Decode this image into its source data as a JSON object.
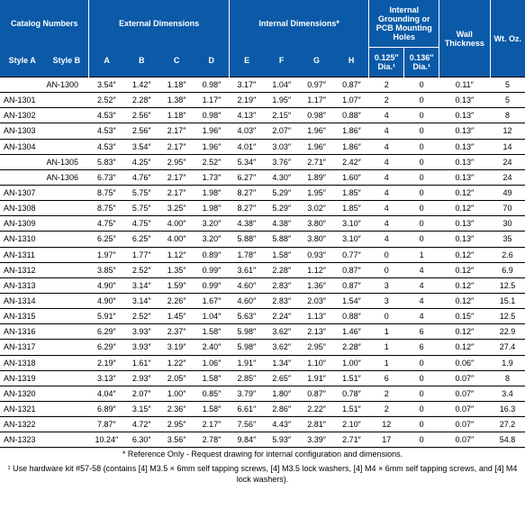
{
  "header": {
    "catalog": "Catalog Numbers",
    "ext": "External Dimensions",
    "int": "Internal Dimensions*",
    "holes": "Internal Grounding or PCB Mounting Holes",
    "styleA": "Style A",
    "styleB": "Style B",
    "A": "A",
    "B": "B",
    "C": "C",
    "D": "D",
    "E": "E",
    "F": "F",
    "G": "G",
    "H": "H",
    "hole1": "0.125″ Dia.¹",
    "hole2": "0.136″ Dia.¹",
    "wall": "Wall Thickness",
    "wt": "Wt. Oz."
  },
  "colors": {
    "header_bg": "#0a5aa8",
    "header_fg": "#ffffff"
  },
  "rows": [
    {
      "styleA": "",
      "styleB": "AN-1300",
      "A": "3.54″",
      "B": "1.42″",
      "C": "1.18″",
      "D": "0.98″",
      "E": "3.17″",
      "F": "1.04″",
      "G": "0.97″",
      "H": "0.87″",
      "h1": "2",
      "h2": "0",
      "wall": "0.11″",
      "wt": "5"
    },
    {
      "styleA": "AN-1301",
      "styleB": "",
      "A": "2.52″",
      "B": "2.28″",
      "C": "1.38″",
      "D": "1.17″",
      "E": "2.19″",
      "F": "1.95″",
      "G": "1.17″",
      "H": "1.07″",
      "h1": "2",
      "h2": "0",
      "wall": "0.13″",
      "wt": "5"
    },
    {
      "styleA": "AN-1302",
      "styleB": "",
      "A": "4.53″",
      "B": "2.56″",
      "C": "1.18″",
      "D": "0.98″",
      "E": "4.13″",
      "F": "2.15″",
      "G": "0.98″",
      "H": "0.88″",
      "h1": "4",
      "h2": "0",
      "wall": "0.13″",
      "wt": "8"
    },
    {
      "styleA": "AN-1303",
      "styleB": "",
      "A": "4.53″",
      "B": "2.56″",
      "C": "2.17″",
      "D": "1.96″",
      "E": "4.03″",
      "F": "2.07″",
      "G": "1.96″",
      "H": "1.86″",
      "h1": "4",
      "h2": "0",
      "wall": "0.13″",
      "wt": "12"
    },
    {
      "styleA": "AN-1304",
      "styleB": "",
      "A": "4.53″",
      "B": "3.54″",
      "C": "2.17″",
      "D": "1.96″",
      "E": "4.01″",
      "F": "3.03″",
      "G": "1.96″",
      "H": "1.86″",
      "h1": "4",
      "h2": "0",
      "wall": "0.13″",
      "wt": "14"
    },
    {
      "styleA": "",
      "styleB": "AN-1305",
      "A": "5.83″",
      "B": "4.25″",
      "C": "2.95″",
      "D": "2.52″",
      "E": "5.34″",
      "F": "3.76″",
      "G": "2.71″",
      "H": "2.42″",
      "h1": "4",
      "h2": "0",
      "wall": "0.13″",
      "wt": "24"
    },
    {
      "styleA": "",
      "styleB": "AN-1306",
      "A": "6.73″",
      "B": "4.76″",
      "C": "2.17″",
      "D": "1.73″",
      "E": "6.27″",
      "F": "4.30″",
      "G": "1.89″",
      "H": "1.60″",
      "h1": "4",
      "h2": "0",
      "wall": "0.13″",
      "wt": "24"
    },
    {
      "styleA": "AN-1307",
      "styleB": "",
      "A": "8.75″",
      "B": "5.75″",
      "C": "2.17″",
      "D": "1.98″",
      "E": "8.27″",
      "F": "5.29″",
      "G": "1.95″",
      "H": "1.85″",
      "h1": "4",
      "h2": "0",
      "wall": "0.12″",
      "wt": "49"
    },
    {
      "styleA": "AN-1308",
      "styleB": "",
      "A": "8.75″",
      "B": "5.75″",
      "C": "3.25″",
      "D": "1.98″",
      "E": "8.27″",
      "F": "5.29″",
      "G": "3.02″",
      "H": "1.85″",
      "h1": "4",
      "h2": "0",
      "wall": "0.12″",
      "wt": "70"
    },
    {
      "styleA": "AN-1309",
      "styleB": "",
      "A": "4.75″",
      "B": "4.75″",
      "C": "4.00″",
      "D": "3.20″",
      "E": "4.38″",
      "F": "4.38″",
      "G": "3.80″",
      "H": "3.10″",
      "h1": "4",
      "h2": "0",
      "wall": "0.13″",
      "wt": "30"
    },
    {
      "styleA": "AN-1310",
      "styleB": "",
      "A": "6.25″",
      "B": "6.25″",
      "C": "4.00″",
      "D": "3.20″",
      "E": "5.88″",
      "F": "5.88″",
      "G": "3.80″",
      "H": "3.10″",
      "h1": "4",
      "h2": "0",
      "wall": "0.13″",
      "wt": "35"
    },
    {
      "styleA": "AN-1311",
      "styleB": "",
      "A": "1.97″",
      "B": "1.77″",
      "C": "1.12″",
      "D": "0.89″",
      "E": "1.78″",
      "F": "1.58″",
      "G": "0.93″",
      "H": "0.77″",
      "h1": "0",
      "h2": "1",
      "wall": "0.12″",
      "wt": "2.6"
    },
    {
      "styleA": "AN-1312",
      "styleB": "",
      "A": "3.85″",
      "B": "2.52″",
      "C": "1.35″",
      "D": "0.99″",
      "E": "3.61″",
      "F": "2.28″",
      "G": "1.12″",
      "H": "0.87″",
      "h1": "0",
      "h2": "4",
      "wall": "0.12″",
      "wt": "6.9"
    },
    {
      "styleA": "AN-1313",
      "styleB": "",
      "A": "4.90″",
      "B": "3.14″",
      "C": "1.59″",
      "D": "0.99″",
      "E": "4.60″",
      "F": "2.83″",
      "G": "1.36″",
      "H": "0.87″",
      "h1": "3",
      "h2": "4",
      "wall": "0.12″",
      "wt": "12.5"
    },
    {
      "styleA": "AN-1314",
      "styleB": "",
      "A": "4.90″",
      "B": "3.14″",
      "C": "2.26″",
      "D": "1.67″",
      "E": "4.60″",
      "F": "2.83″",
      "G": "2.03″",
      "H": "1.54″",
      "h1": "3",
      "h2": "4",
      "wall": "0.12″",
      "wt": "15.1"
    },
    {
      "styleA": "AN-1315",
      "styleB": "",
      "A": "5.91″",
      "B": "2.52″",
      "C": "1.45″",
      "D": "1.04″",
      "E": "5.63″",
      "F": "2.24″",
      "G": "1.13″",
      "H": "0.88″",
      "h1": "0",
      "h2": "4",
      "wall": "0.15″",
      "wt": "12.5"
    },
    {
      "styleA": "AN-1316",
      "styleB": "",
      "A": "6.29″",
      "B": "3.93″",
      "C": "2.37″",
      "D": "1.58″",
      "E": "5.98″",
      "F": "3.62″",
      "G": "2.13″",
      "H": "1.46″",
      "h1": "1",
      "h2": "6",
      "wall": "0.12″",
      "wt": "22.9"
    },
    {
      "styleA": "AN-1317",
      "styleB": "",
      "A": "6.29″",
      "B": "3.93″",
      "C": "3.19″",
      "D": "2.40″",
      "E": "5.98″",
      "F": "3.62″",
      "G": "2.95″",
      "H": "2.28″",
      "h1": "1",
      "h2": "6",
      "wall": "0.12″",
      "wt": "27.4"
    },
    {
      "styleA": "AN-1318",
      "styleB": "",
      "A": "2.19″",
      "B": "1.61″",
      "C": "1.22″",
      "D": "1.06″",
      "E": "1.91″",
      "F": "1.34″",
      "G": "1.10″",
      "H": "1.00″",
      "h1": "1",
      "h2": "0",
      "wall": "0.06″",
      "wt": "1.9"
    },
    {
      "styleA": "AN-1319",
      "styleB": "",
      "A": "3.13″",
      "B": "2.93″",
      "C": "2.05″",
      "D": "1.58″",
      "E": "2.85″",
      "F": "2.65″",
      "G": "1.91″",
      "H": "1.51″",
      "h1": "6",
      "h2": "0",
      "wall": "0.07″",
      "wt": "8"
    },
    {
      "styleA": "AN-1320",
      "styleB": "",
      "A": "4.04″",
      "B": "2.07″",
      "C": "1.00″",
      "D": "0.85″",
      "E": "3.79″",
      "F": "1.80″",
      "G": "0.87″",
      "H": "0.78″",
      "h1": "2",
      "h2": "0",
      "wall": "0.07″",
      "wt": "3.4"
    },
    {
      "styleA": "AN-1321",
      "styleB": "",
      "A": "6.89″",
      "B": "3.15″",
      "C": "2.36″",
      "D": "1.58″",
      "E": "6.61″",
      "F": "2.86″",
      "G": "2.22″",
      "H": "1.51″",
      "h1": "2",
      "h2": "0",
      "wall": "0.07″",
      "wt": "16.3"
    },
    {
      "styleA": "AN-1322",
      "styleB": "",
      "A": "7.87″",
      "B": "4.72″",
      "C": "2.95″",
      "D": "2.17″",
      "E": "7.56″",
      "F": "4.43″",
      "G": "2.81″",
      "H": "2.10″",
      "h1": "12",
      "h2": "0",
      "wall": "0.07″",
      "wt": "27.2"
    },
    {
      "styleA": "AN-1323",
      "styleB": "",
      "A": "10.24″",
      "B": "6.30″",
      "C": "3.56″",
      "D": "2.78″",
      "E": "9.84″",
      "F": "5.93″",
      "G": "3.39″",
      "H": "2.71″",
      "h1": "17",
      "h2": "0",
      "wall": "0.07″",
      "wt": "54.8"
    }
  ],
  "footnotes": {
    "line1": "* Reference Only - Request drawing for internal configuration and dimensions.",
    "line2": "¹ Use hardware kit #57-58 (contains [4] M3.5 × 6mm self tapping screws, [4] M3.5 lock washers, [4] M4 × 6mm self tapping screws, and [4] M4 lock washers)."
  }
}
